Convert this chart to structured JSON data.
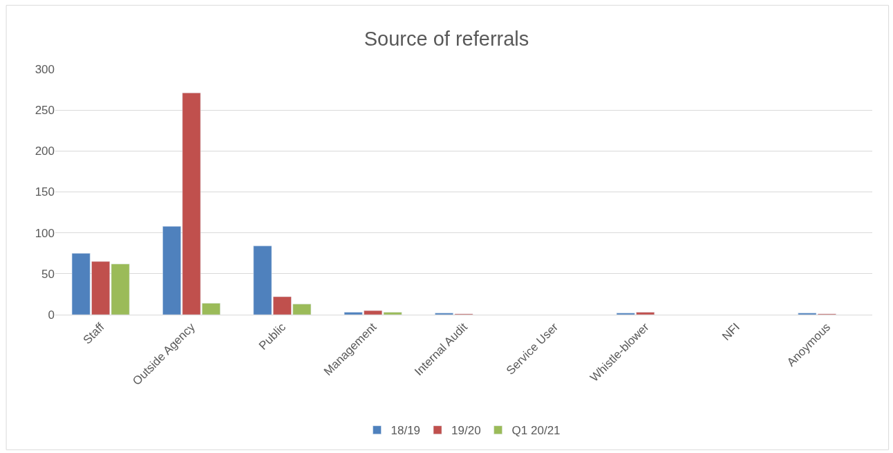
{
  "chart_data": {
    "type": "bar",
    "title": "Source of referrals",
    "categories": [
      "Staff",
      "Outside Agency",
      "Public",
      "Management",
      "Internal Audit",
      "Service User",
      "Whistle-blower",
      "NFI",
      "Anoymous"
    ],
    "series": [
      {
        "name": "18/19",
        "color": "#4f81bd",
        "values": [
          75,
          108,
          84,
          3,
          2,
          null,
          2,
          null,
          2
        ]
      },
      {
        "name": "19/20",
        "color": "#c0504d",
        "values": [
          65,
          271,
          22,
          5,
          1,
          null,
          3,
          null,
          1
        ]
      },
      {
        "name": "Q1 20/21",
        "color": "#9bbb59",
        "values": [
          62,
          14,
          13,
          3,
          null,
          null,
          null,
          null,
          null
        ]
      }
    ],
    "ylim": [
      0,
      300
    ],
    "yticks": [
      0,
      50,
      100,
      150,
      200,
      250,
      300
    ],
    "grid": "y",
    "legend": "bottom"
  }
}
